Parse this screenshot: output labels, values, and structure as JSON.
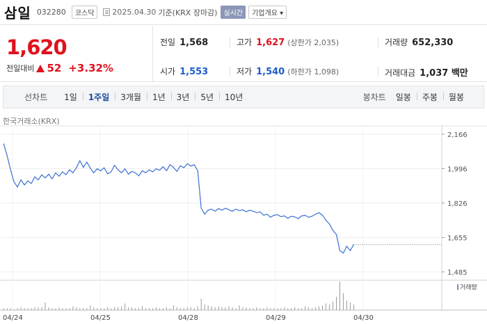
{
  "header": {
    "name": "삼일",
    "code": "032280",
    "market": "코스닥",
    "date": "2025.04.30",
    "basis": "기준(KRX 장마감)",
    "realtime_label": "실시간",
    "company_info_label": "기업개요 ▾"
  },
  "price": {
    "current": "1,620",
    "change_label": "전일대비",
    "change": "52",
    "change_pct": "+3.32%"
  },
  "stats": {
    "prev_close": {
      "label": "전일",
      "value": "1,568"
    },
    "high": {
      "label": "고가",
      "value": "1,627",
      "sub": "(상한가 2,035)"
    },
    "volume": {
      "label": "거래량",
      "value": "652,330"
    },
    "open": {
      "label": "시가",
      "value": "1,553"
    },
    "low": {
      "label": "저가",
      "value": "1,540",
      "sub": "(하한가 1,098)"
    },
    "trade_amount": {
      "label": "거래대금",
      "value": "1,037 백만"
    }
  },
  "line_chart_tabs": {
    "title": "선차트",
    "items": [
      "1일",
      "1주일",
      "3개월",
      "1년",
      "3년",
      "5년",
      "10년"
    ],
    "active": "1주일"
  },
  "candle_chart_tabs": {
    "title": "봉차트",
    "items": [
      "일봉",
      "주봉",
      "월봉"
    ]
  },
  "source_label": "한국거래소(KRX)",
  "colors": {
    "up": "#e0121e",
    "down": "#1c5dc8",
    "line": "#3b6fd1"
  },
  "chart_data": {
    "type": "line",
    "x_labels": [
      "04/24",
      "04/25",
      "04/28",
      "04/29",
      "04/30"
    ],
    "y_ticks": [
      2166,
      1996,
      1826,
      1655,
      1485
    ],
    "ylim": [
      1485,
      2166
    ],
    "volume_label": "거래량",
    "series": [
      {
        "values": [
          2120,
          2060,
          1990,
          1930,
          1905,
          1940,
          1915,
          1935,
          1922,
          1955,
          1940,
          1965,
          1950,
          1968,
          1945,
          1975,
          1958,
          1980,
          1965,
          1990,
          1975,
          2000,
          2035,
          2002,
          2028,
          1998,
          1975,
          1995,
          1985,
          2000,
          1970,
          1980,
          2012,
          1990,
          1975,
          1995,
          1968,
          1982,
          1975,
          1960,
          1985,
          1975,
          1990,
          1980,
          1995,
          1988,
          2005,
          1985,
          2015,
          2002,
          1982,
          2010,
          2000,
          2020,
          2008,
          2015,
          1985,
          1800,
          1770,
          1790,
          1795,
          1785,
          1798,
          1790,
          1800,
          1792,
          1785,
          1795,
          1788,
          1792,
          1782,
          1790,
          1785,
          1778,
          1782,
          1765,
          1770,
          1755,
          1765,
          1768,
          1758,
          1762,
          1750,
          1760,
          1757,
          1748,
          1762,
          1765,
          1755,
          1760,
          1770,
          1778,
          1765,
          1740,
          1722,
          1690,
          1670,
          1590,
          1578,
          1612,
          1590,
          1620
        ]
      }
    ],
    "volume": [
      2,
      2,
      2,
      1,
      2,
      3,
      2,
      2,
      2,
      3,
      3,
      3,
      8,
      3,
      2,
      2,
      3,
      2,
      2,
      2,
      4,
      3,
      2,
      2,
      2,
      5,
      3,
      2,
      2,
      2,
      3,
      2,
      3,
      3,
      4,
      7,
      3,
      3,
      2,
      2,
      4,
      2,
      2,
      2,
      3,
      2,
      2,
      3,
      2,
      5,
      3,
      2,
      2,
      3,
      3,
      2,
      4,
      12,
      6,
      5,
      4,
      3,
      4,
      3,
      3,
      4,
      3,
      2,
      5,
      3,
      3,
      2,
      2,
      3,
      2,
      2,
      3,
      2,
      2,
      2,
      2,
      3,
      2,
      2,
      3,
      2,
      2,
      4,
      3,
      2,
      3,
      4,
      5,
      7,
      6,
      9,
      14,
      30,
      18,
      10,
      8,
      6
    ]
  }
}
